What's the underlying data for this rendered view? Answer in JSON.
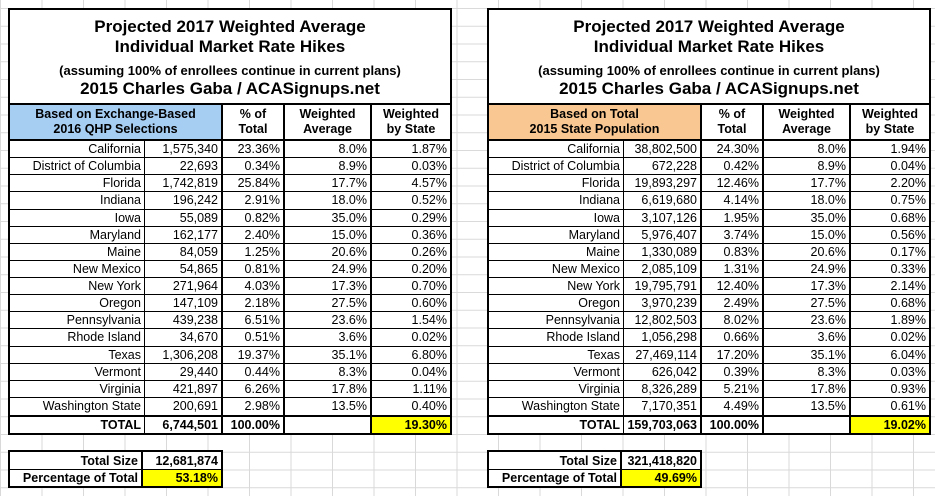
{
  "grid": {
    "line_color": "#d9d9d9"
  },
  "colors": {
    "left_header": "#a6cdf2",
    "right_header": "#f9c791",
    "highlight": "#ffff00"
  },
  "title": {
    "line1": "Projected 2017 Weighted Average",
    "line2": "Individual Market Rate Hikes",
    "line3": "(assuming 100% of enrollees continue in current plans)",
    "line4": "2015 Charles Gaba / ACASignups.net"
  },
  "columns": {
    "pct_line1": "% of",
    "pct_line2": "Total",
    "wavg_line1": "Weighted",
    "wavg_line2": "Average",
    "wbs_line1": "Weighted",
    "wbs_line2": "by State"
  },
  "tables": {
    "left": {
      "header_line1": "Based on Exchange-Based",
      "header_line2": "2016 QHP Selections",
      "rows": [
        {
          "state": "California",
          "value": "1,575,340",
          "pct": "23.36%",
          "wavg": "8.0%",
          "wstate": "1.87%"
        },
        {
          "state": "District of Columbia",
          "value": "22,693",
          "pct": "0.34%",
          "wavg": "8.9%",
          "wstate": "0.03%"
        },
        {
          "state": "Florida",
          "value": "1,742,819",
          "pct": "25.84%",
          "wavg": "17.7%",
          "wstate": "4.57%"
        },
        {
          "state": "Indiana",
          "value": "196,242",
          "pct": "2.91%",
          "wavg": "18.0%",
          "wstate": "0.52%"
        },
        {
          "state": "Iowa",
          "value": "55,089",
          "pct": "0.82%",
          "wavg": "35.0%",
          "wstate": "0.29%"
        },
        {
          "state": "Maryland",
          "value": "162,177",
          "pct": "2.40%",
          "wavg": "15.0%",
          "wstate": "0.36%"
        },
        {
          "state": "Maine",
          "value": "84,059",
          "pct": "1.25%",
          "wavg": "20.6%",
          "wstate": "0.26%"
        },
        {
          "state": "New Mexico",
          "value": "54,865",
          "pct": "0.81%",
          "wavg": "24.9%",
          "wstate": "0.20%"
        },
        {
          "state": "New York",
          "value": "271,964",
          "pct": "4.03%",
          "wavg": "17.3%",
          "wstate": "0.70%"
        },
        {
          "state": "Oregon",
          "value": "147,109",
          "pct": "2.18%",
          "wavg": "27.5%",
          "wstate": "0.60%"
        },
        {
          "state": "Pennsylvania",
          "value": "439,238",
          "pct": "6.51%",
          "wavg": "23.6%",
          "wstate": "1.54%"
        },
        {
          "state": "Rhode Island",
          "value": "34,670",
          "pct": "0.51%",
          "wavg": "3.6%",
          "wstate": "0.02%"
        },
        {
          "state": "Texas",
          "value": "1,306,208",
          "pct": "19.37%",
          "wavg": "35.1%",
          "wstate": "6.80%"
        },
        {
          "state": "Vermont",
          "value": "29,440",
          "pct": "0.44%",
          "wavg": "8.3%",
          "wstate": "0.04%"
        },
        {
          "state": "Virginia",
          "value": "421,897",
          "pct": "6.26%",
          "wavg": "17.8%",
          "wstate": "1.11%"
        },
        {
          "state": "Washington State",
          "value": "200,691",
          "pct": "2.98%",
          "wavg": "13.5%",
          "wstate": "0.40%"
        }
      ],
      "total": {
        "label": "TOTAL",
        "value": "6,744,501",
        "pct": "100.00%",
        "wavg": "",
        "wstate": "19.30%"
      },
      "summary": {
        "size_label": "Total Size",
        "size_value": "12,681,874",
        "pct_label": "Percentage of Total",
        "pct_value": "53.18%"
      }
    },
    "right": {
      "header_line1": "Based on Total",
      "header_line2": "2015 State Population",
      "rows": [
        {
          "state": "California",
          "value": "38,802,500",
          "pct": "24.30%",
          "wavg": "8.0%",
          "wstate": "1.94%"
        },
        {
          "state": "District of Columbia",
          "value": "672,228",
          "pct": "0.42%",
          "wavg": "8.9%",
          "wstate": "0.04%"
        },
        {
          "state": "Florida",
          "value": "19,893,297",
          "pct": "12.46%",
          "wavg": "17.7%",
          "wstate": "2.20%"
        },
        {
          "state": "Indiana",
          "value": "6,619,680",
          "pct": "4.14%",
          "wavg": "18.0%",
          "wstate": "0.75%"
        },
        {
          "state": "Iowa",
          "value": "3,107,126",
          "pct": "1.95%",
          "wavg": "35.0%",
          "wstate": "0.68%"
        },
        {
          "state": "Maryland",
          "value": "5,976,407",
          "pct": "3.74%",
          "wavg": "15.0%",
          "wstate": "0.56%"
        },
        {
          "state": "Maine",
          "value": "1,330,089",
          "pct": "0.83%",
          "wavg": "20.6%",
          "wstate": "0.17%"
        },
        {
          "state": "New Mexico",
          "value": "2,085,109",
          "pct": "1.31%",
          "wavg": "24.9%",
          "wstate": "0.33%"
        },
        {
          "state": "New York",
          "value": "19,795,791",
          "pct": "12.40%",
          "wavg": "17.3%",
          "wstate": "2.14%"
        },
        {
          "state": "Oregon",
          "value": "3,970,239",
          "pct": "2.49%",
          "wavg": "27.5%",
          "wstate": "0.68%"
        },
        {
          "state": "Pennsylvania",
          "value": "12,802,503",
          "pct": "8.02%",
          "wavg": "23.6%",
          "wstate": "1.89%"
        },
        {
          "state": "Rhode Island",
          "value": "1,056,298",
          "pct": "0.66%",
          "wavg": "3.6%",
          "wstate": "0.02%"
        },
        {
          "state": "Texas",
          "value": "27,469,114",
          "pct": "17.20%",
          "wavg": "35.1%",
          "wstate": "6.04%"
        },
        {
          "state": "Vermont",
          "value": "626,042",
          "pct": "0.39%",
          "wavg": "8.3%",
          "wstate": "0.03%"
        },
        {
          "state": "Virginia",
          "value": "8,326,289",
          "pct": "5.21%",
          "wavg": "17.8%",
          "wstate": "0.93%"
        },
        {
          "state": "Washington State",
          "value": "7,170,351",
          "pct": "4.49%",
          "wavg": "13.5%",
          "wstate": "0.61%"
        }
      ],
      "total": {
        "label": "TOTAL",
        "value": "159,703,063",
        "pct": "100.00%",
        "wavg": "",
        "wstate": "19.02%"
      },
      "summary": {
        "size_label": "Total Size",
        "size_value": "321,418,820",
        "pct_label": "Percentage of Total",
        "pct_value": "49.69%"
      }
    }
  }
}
